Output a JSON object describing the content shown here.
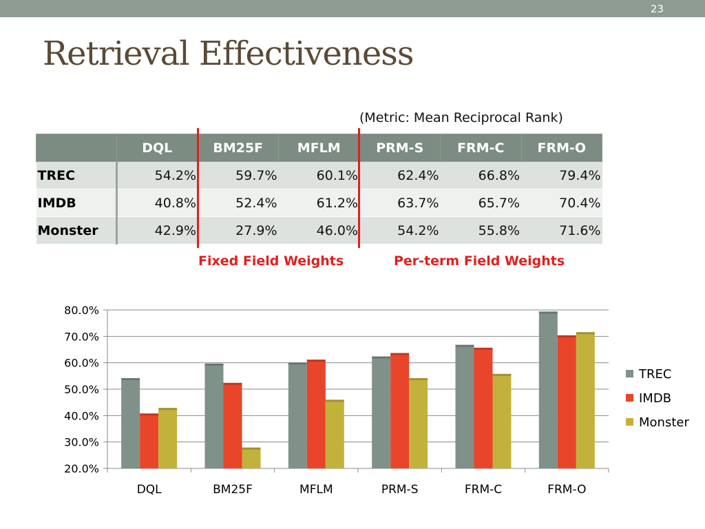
{
  "slide": {
    "number": "23",
    "title": "Retrieval Effectiveness"
  },
  "table": {
    "metric_note": "(Metric: Mean Reciprocal Rank)",
    "columns": [
      "DQL",
      "BM25F",
      "MFLM",
      "PRM-S",
      "FRM-C",
      "FRM-O"
    ],
    "rows": [
      {
        "label": "TREC",
        "values": [
          "54.2%",
          "59.7%",
          "60.1%",
          "62.4%",
          "66.8%",
          "79.4%"
        ]
      },
      {
        "label": "IMDB",
        "values": [
          "40.8%",
          "52.4%",
          "61.2%",
          "63.7%",
          "65.7%",
          "70.4%"
        ]
      },
      {
        "label": "Monster",
        "values": [
          "42.9%",
          "27.9%",
          "46.0%",
          "54.2%",
          "55.8%",
          "71.6%"
        ]
      }
    ],
    "group_labels": {
      "fixed": "Fixed Field Weights",
      "per_term": "Per-term Field Weights"
    }
  },
  "colors": {
    "topbar": "#8e9b90",
    "header": "#7c8c82",
    "accent_red": "#e0201e",
    "title": "#5a4a37"
  },
  "chart_data": {
    "type": "bar",
    "categories": [
      "DQL",
      "BM25F",
      "MFLM",
      "PRM-S",
      "FRM-C",
      "FRM-O"
    ],
    "series": [
      {
        "name": "TREC",
        "color": "#7f9188",
        "values": [
          54.2,
          59.7,
          60.1,
          62.4,
          66.8,
          79.4
        ]
      },
      {
        "name": "IMDB",
        "color": "#e8452a",
        "values": [
          40.8,
          52.4,
          61.2,
          63.7,
          65.7,
          70.4
        ]
      },
      {
        "name": "Monster",
        "color": "#c2b23c",
        "values": [
          42.9,
          27.9,
          46.0,
          54.2,
          55.8,
          71.6
        ]
      }
    ],
    "ylim": [
      20,
      80
    ],
    "yticks": [
      "20.0%",
      "30.0%",
      "40.0%",
      "50.0%",
      "60.0%",
      "70.0%",
      "80.0%"
    ],
    "grid": true,
    "legend": "right",
    "title": "",
    "xlabel": "",
    "ylabel": ""
  }
}
